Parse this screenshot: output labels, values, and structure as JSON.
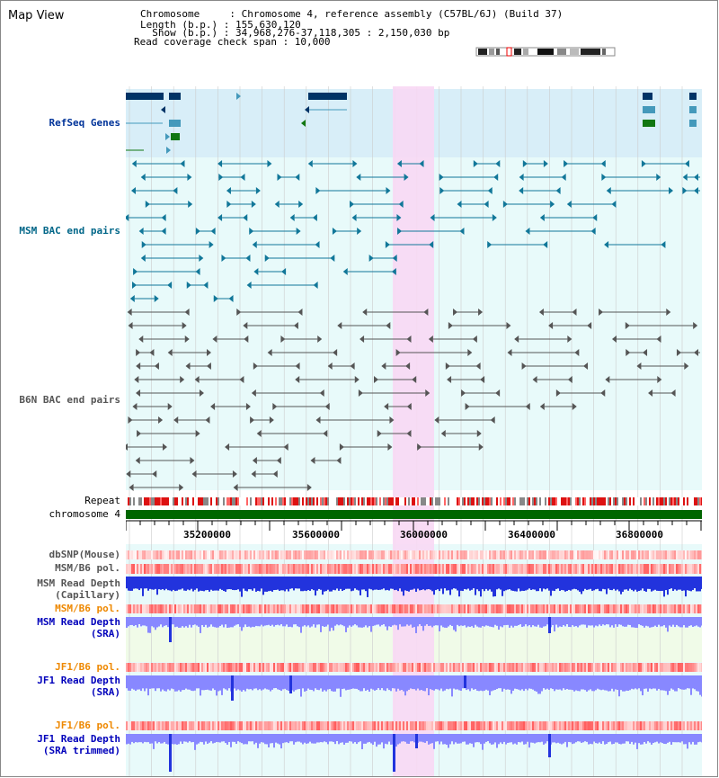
{
  "view_title": "Map View",
  "info": {
    "chromosome": "Chromosome     : Chromosome 4, reference assembly (C57BL/6J) (Build 37)",
    "length": "Length (b.p.) : 155,630,120",
    "show": "  Show (b.p.) : 34,968,276-37,118,305 : 2,150,030 bp",
    "read_check": "Read coverage check span : 10,000"
  },
  "tracks": {
    "refseq": {
      "label": "RefSeq Genes",
      "color": "#003399"
    },
    "msm_bac": {
      "label": "MSM BAC end pairs",
      "color": "#006688"
    },
    "b6n_bac": {
      "label": "B6N BAC end pairs",
      "color": "#555555"
    },
    "repeat": {
      "label": "Repeat"
    },
    "chromosome": {
      "label": "chromosome 4"
    },
    "dbsnp": {
      "label": "dbSNP(Mouse)",
      "color": "#555555"
    },
    "msm_pol": {
      "label": "MSM/B6 pol.",
      "color": "#555555"
    },
    "msm_depth_cap": {
      "label_1": "MSM Read Depth",
      "label_2": "(Capillary)",
      "color": "#555555"
    },
    "msm_pol2": {
      "label": "MSM/B6 pol.",
      "color": "#ee8800"
    },
    "msm_depth_sra": {
      "label_1": "MSM Read Depth",
      "label_2": "(SRA)",
      "color": "#0000bb"
    },
    "jf1_pol": {
      "label": "JF1/B6 pol.",
      "color": "#ee8800"
    },
    "jf1_depth_sra": {
      "label_1": "JF1 Read Depth",
      "label_2": "(SRA)",
      "color": "#0000bb"
    },
    "jf1_pol2": {
      "label": "JF1/B6 pol.",
      "color": "#ee8800"
    },
    "jf1_depth_trim": {
      "label_1": "JF1 Read Depth",
      "label_2": "(SRA trimmed)",
      "color": "#0000bb"
    }
  },
  "ruler": {
    "ticks": [
      "35200000",
      "35600000",
      "36000000",
      "36400000",
      "36800000"
    ]
  },
  "colors": {
    "highlight": "#f8d8f4",
    "refseq_bg": "#d8eef8",
    "pale_bg": "#e8fafa",
    "green_bg": "#f0fbe8",
    "chromosome_bar": "#006600",
    "gene_dark": "#003366",
    "gene_light": "#4499bb",
    "gene_green": "#117711",
    "msm_feature": "#117799",
    "b6n_feature": "#555555",
    "depth_dark": "#2233dd",
    "depth_light": "#8888ff"
  }
}
